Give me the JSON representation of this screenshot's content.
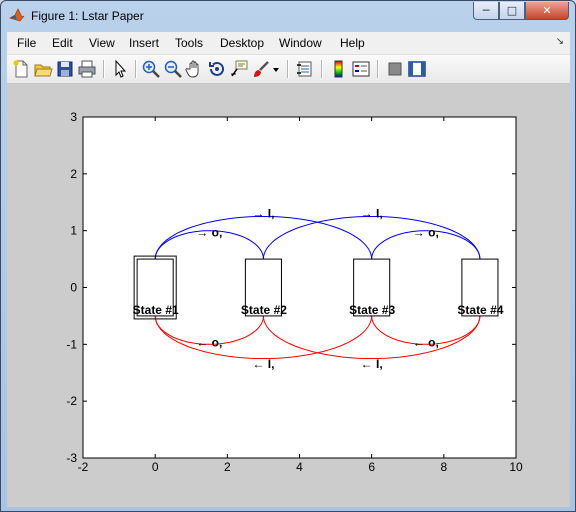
{
  "window": {
    "title": "Figure 1: Lstar Paper"
  },
  "menu": [
    "File",
    "Edit",
    "View",
    "Insert",
    "Tools",
    "Desktop",
    "Window",
    "Help"
  ],
  "toolbar": [
    "new-figure-icon",
    "open-file-icon",
    "save-icon",
    "print-icon",
    "edit-plot-arrow-icon",
    "zoom-in-icon",
    "zoom-out-icon",
    "pan-hand-icon",
    "rotate-3d-icon",
    "data-cursor-icon",
    "brush-icon",
    "brush-dropdown-icon",
    "link-plot-icon",
    "colorbar-icon",
    "legend-icon",
    "hide-plot-tools-icon",
    "show-plot-tools-icon"
  ],
  "colors": {
    "blue": "#0000ff",
    "red": "#ff0000",
    "axes_bg": "#ffffff",
    "figure_bg": "#cccccc"
  },
  "chart_data": {
    "type": "diagram",
    "xlim": [
      -2,
      10
    ],
    "ylim": [
      -3,
      3
    ],
    "xticks": [
      "-2",
      "0",
      "2",
      "4",
      "6",
      "8",
      "10"
    ],
    "yticks": [
      "3",
      "2",
      "1",
      "0",
      "-1",
      "-2",
      "-3"
    ],
    "states": [
      {
        "label": "State #1",
        "x": 0,
        "double_border": true
      },
      {
        "label": "State #2",
        "x": 3
      },
      {
        "label": "State #3",
        "x": 6
      },
      {
        "label": "State #4",
        "x": 9
      }
    ],
    "transitions": [
      {
        "from": 1,
        "to": 2,
        "color": "blue",
        "label": "→ o,",
        "label_x": 1.5,
        "label_y": 0.97
      },
      {
        "from": 1,
        "to": 3,
        "color": "blue",
        "label": "→ I,",
        "label_x": 3.0,
        "label_y": 1.3
      },
      {
        "from": 2,
        "to": 4,
        "color": "blue",
        "label": "→ I,",
        "label_x": 6.0,
        "label_y": 1.3
      },
      {
        "from": 3,
        "to": 4,
        "color": "blue",
        "label": "→ o,",
        "label_x": 7.5,
        "label_y": 0.97
      },
      {
        "from": 2,
        "to": 1,
        "color": "red",
        "label": "← o,",
        "label_x": 1.5,
        "label_y": -0.97
      },
      {
        "from": 3,
        "to": 1,
        "color": "red",
        "label": "← I,",
        "label_x": 3.0,
        "label_y": -1.35
      },
      {
        "from": 4,
        "to": 2,
        "color": "red",
        "label": "← I,",
        "label_x": 6.0,
        "label_y": -1.35
      },
      {
        "from": 4,
        "to": 3,
        "color": "red",
        "label": "← o,",
        "label_x": 7.5,
        "label_y": -0.97
      }
    ]
  }
}
